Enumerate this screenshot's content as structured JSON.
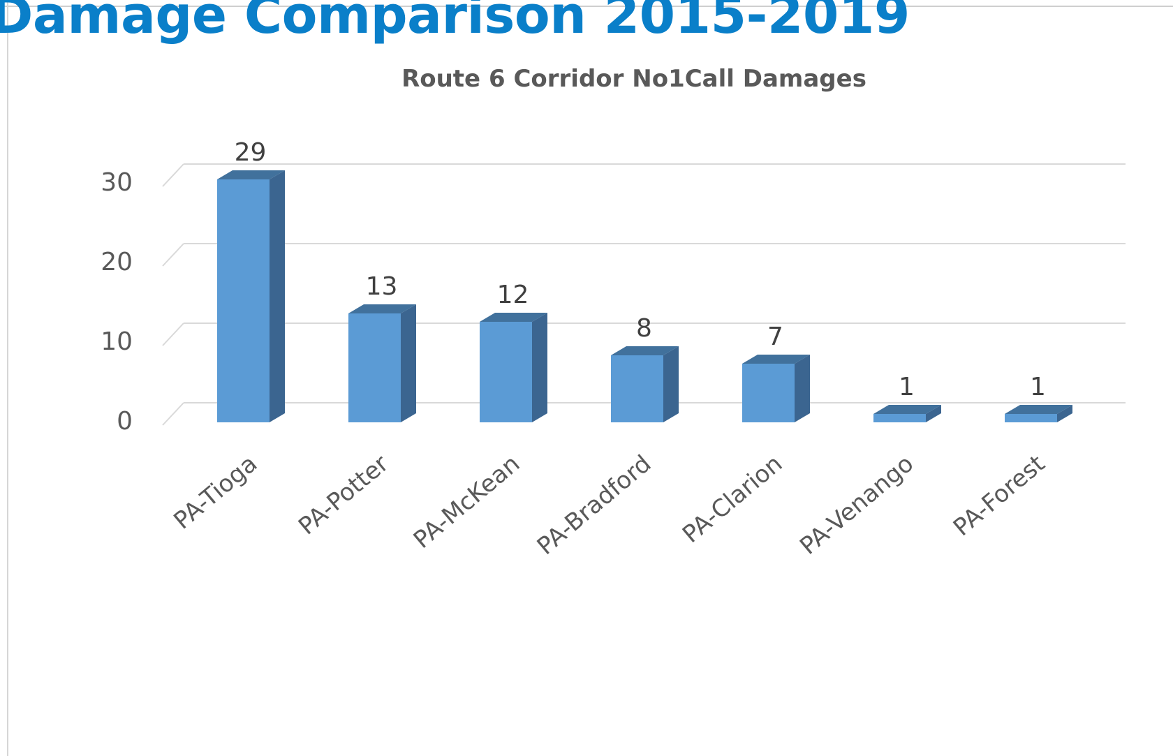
{
  "page": {
    "title": "Damage Comparison 2015-2019"
  },
  "colors": {
    "title": "#0a7fc9",
    "bar_front": "#5b9bd5",
    "bar_side": "#3b6590",
    "bar_top": "#41719c",
    "gridline": "#d9d9d9",
    "axis_text": "#595959"
  },
  "chart_data": {
    "type": "bar",
    "title": "Route 6 Corridor No1Call Damages",
    "categories": [
      "PA-Tioga",
      "PA-Potter",
      "PA-McKean",
      "PA-Bradford",
      "PA-Clarion",
      "PA-Venango",
      "PA-Forest"
    ],
    "values": [
      29,
      13,
      12,
      8,
      7,
      1,
      1
    ],
    "data_labels": [
      "29",
      "13",
      "12",
      "8",
      "7",
      "1",
      "1"
    ],
    "yticks": [
      "0",
      "10",
      "20",
      "30"
    ],
    "ylim": [
      0,
      30
    ],
    "grid": true,
    "legend": "none",
    "style": "3d-column"
  }
}
